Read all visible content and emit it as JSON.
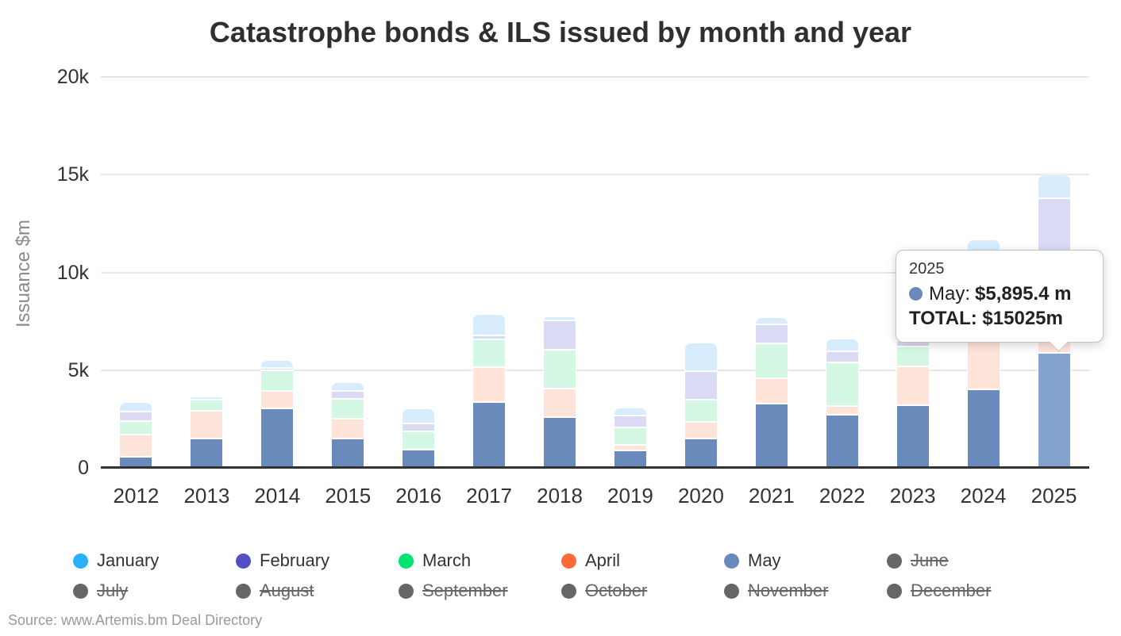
{
  "page": {
    "source": "Source: www.Artemis.bm Deal Directory"
  },
  "chart_data": {
    "type": "bar",
    "stacked": true,
    "title": "Catastrophe bonds & ILS issued by month and year",
    "xlabel": "",
    "ylabel": "Issuance $m",
    "ylim": [
      0,
      20000
    ],
    "grid": true,
    "legend_position": "bottom",
    "yticks": [
      {
        "value": 0,
        "label": "0"
      },
      {
        "value": 5000,
        "label": "5k"
      },
      {
        "value": 10000,
        "label": "10k"
      },
      {
        "value": 15000,
        "label": "15k"
      },
      {
        "value": 20000,
        "label": "20k"
      }
    ],
    "categories": [
      "2012",
      "2013",
      "2014",
      "2015",
      "2016",
      "2017",
      "2018",
      "2019",
      "2020",
      "2021",
      "2022",
      "2023",
      "2024",
      "2025"
    ],
    "series": [
      {
        "name": "January",
        "color": "#2CAFFE",
        "display_color": "#D7EDFE",
        "values": [
          480,
          170,
          400,
          480,
          770,
          1100,
          200,
          420,
          1460,
          370,
          650,
          400,
          1100,
          1230
        ]
      },
      {
        "name": "February",
        "color": "#544FC5",
        "display_color": "#DBDAF4",
        "values": [
          480,
          0,
          120,
          370,
          400,
          200,
          1500,
          580,
          1460,
          980,
          570,
          300,
          1500,
          3650
        ]
      },
      {
        "name": "March",
        "color": "#00E272",
        "display_color": "#D5F8E4",
        "values": [
          690,
          550,
          1030,
          1050,
          930,
          1420,
          2000,
          900,
          1140,
          1780,
          2230,
          1000,
          2570,
          3700
        ]
      },
      {
        "name": "April",
        "color": "#FE6A35",
        "display_color": "#FFE4DA",
        "values": [
          1130,
          1430,
          900,
          1000,
          0,
          1780,
          1460,
          300,
          850,
          1300,
          450,
          2000,
          2500,
          550
        ]
      },
      {
        "name": "May",
        "color": "#6B8ABC",
        "display_color": "#6B8ABC",
        "values": [
          570,
          1500,
          3050,
          1500,
          950,
          3380,
          2600,
          880,
          1500,
          3280,
          2720,
          3200,
          4020,
          5895.4
        ]
      }
    ],
    "stack_order_bottom_to_top": [
      "May",
      "April",
      "March",
      "February",
      "January"
    ],
    "hover": {
      "category": "2025",
      "series": "May",
      "highlight_color": "#84A2D0"
    },
    "hidden_series": [
      "June",
      "July",
      "August",
      "September",
      "October",
      "November",
      "December"
    ],
    "legend": {
      "inactive_color": "#666666",
      "items": [
        {
          "label": "January",
          "color": "#2CAFFE",
          "active": true
        },
        {
          "label": "February",
          "color": "#544FC5",
          "active": true
        },
        {
          "label": "March",
          "color": "#00E272",
          "active": true
        },
        {
          "label": "April",
          "color": "#FE6A35",
          "active": true
        },
        {
          "label": "May",
          "color": "#6B8ABC",
          "active": true
        },
        {
          "label": "June",
          "color": "#666666",
          "active": false
        },
        {
          "label": "July",
          "color": "#666666",
          "active": false
        },
        {
          "label": "August",
          "color": "#666666",
          "active": false
        },
        {
          "label": "September",
          "color": "#666666",
          "active": false
        },
        {
          "label": "October",
          "color": "#666666",
          "active": false
        },
        {
          "label": "November",
          "color": "#666666",
          "active": false
        },
        {
          "label": "December",
          "color": "#666666",
          "active": false
        }
      ]
    }
  },
  "tooltip": {
    "title": "2025",
    "marker_color": "#6B8ABC",
    "series_label": "May:",
    "value": "$5,895.4 m",
    "total": "TOTAL: $15025m"
  }
}
